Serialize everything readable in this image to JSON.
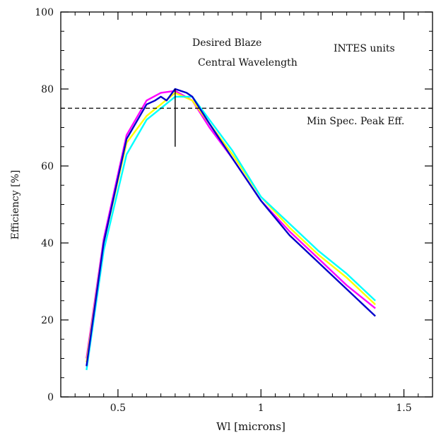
{
  "chart_data": {
    "type": "line",
    "title": "",
    "xlabel": "Wl [microns]",
    "ylabel": "Efficiency [%]",
    "xlim": [
      0.3,
      1.6
    ],
    "ylim": [
      0,
      100
    ],
    "x_ticks": [
      {
        "value": 0.5,
        "label": "0.5"
      },
      {
        "value": 1.0,
        "label": "1"
      },
      {
        "value": 1.5,
        "label": "1.5"
      }
    ],
    "y_ticks": [
      {
        "value": 0,
        "label": "0"
      },
      {
        "value": 20,
        "label": "20"
      },
      {
        "value": 40,
        "label": "40"
      },
      {
        "value": 60,
        "label": "60"
      },
      {
        "value": 80,
        "label": "80"
      },
      {
        "value": 100,
        "label": "100"
      }
    ],
    "grid": false,
    "series": [
      {
        "color": "#ff00ff",
        "points": [
          [
            0.39,
            10
          ],
          [
            0.45,
            41
          ],
          [
            0.53,
            68
          ],
          [
            0.6,
            77
          ],
          [
            0.65,
            79
          ],
          [
            0.7,
            79.5
          ],
          [
            0.76,
            77
          ],
          [
            0.82,
            70
          ],
          [
            0.9,
            62
          ],
          [
            1.0,
            51
          ],
          [
            1.1,
            43
          ],
          [
            1.2,
            36
          ],
          [
            1.3,
            29
          ],
          [
            1.4,
            23
          ]
        ]
      },
      {
        "color": "#ffff00",
        "points": [
          [
            0.39,
            9
          ],
          [
            0.45,
            40
          ],
          [
            0.53,
            66
          ],
          [
            0.6,
            73
          ],
          [
            0.65,
            76
          ],
          [
            0.7,
            79
          ],
          [
            0.76,
            77
          ],
          [
            0.82,
            71
          ],
          [
            0.9,
            63
          ],
          [
            1.0,
            52
          ],
          [
            1.1,
            44
          ],
          [
            1.2,
            37
          ],
          [
            1.3,
            31
          ],
          [
            1.4,
            24
          ]
        ]
      },
      {
        "color": "#00ffff",
        "points": [
          [
            0.39,
            7
          ],
          [
            0.45,
            38
          ],
          [
            0.53,
            63
          ],
          [
            0.6,
            72
          ],
          [
            0.65,
            75
          ],
          [
            0.7,
            78
          ],
          [
            0.76,
            78
          ],
          [
            0.82,
            72
          ],
          [
            0.9,
            64
          ],
          [
            1.0,
            52
          ],
          [
            1.1,
            45
          ],
          [
            1.2,
            38
          ],
          [
            1.3,
            32
          ],
          [
            1.4,
            25
          ]
        ]
      },
      {
        "color": "#0000cc",
        "points": [
          [
            0.39,
            8
          ],
          [
            0.45,
            40
          ],
          [
            0.53,
            67
          ],
          [
            0.6,
            76
          ],
          [
            0.63,
            77
          ],
          [
            0.65,
            78
          ],
          [
            0.67,
            77
          ],
          [
            0.7,
            80
          ],
          [
            0.74,
            79
          ],
          [
            0.76,
            78
          ],
          [
            0.82,
            71
          ],
          [
            0.9,
            62
          ],
          [
            1.0,
            51
          ],
          [
            1.1,
            42
          ],
          [
            1.2,
            35
          ],
          [
            1.3,
            28
          ],
          [
            1.4,
            21
          ]
        ]
      }
    ],
    "reference_line": {
      "y": 75,
      "style": "dashed",
      "label": "Min Spec. Peak Eff."
    },
    "marker_line": {
      "x": 0.7,
      "y_range": [
        65,
        80
      ],
      "label_line1": "Desired Blaze",
      "label_line2": "Central Wavelength"
    },
    "annotations": [
      {
        "text": "INTES units"
      }
    ]
  }
}
